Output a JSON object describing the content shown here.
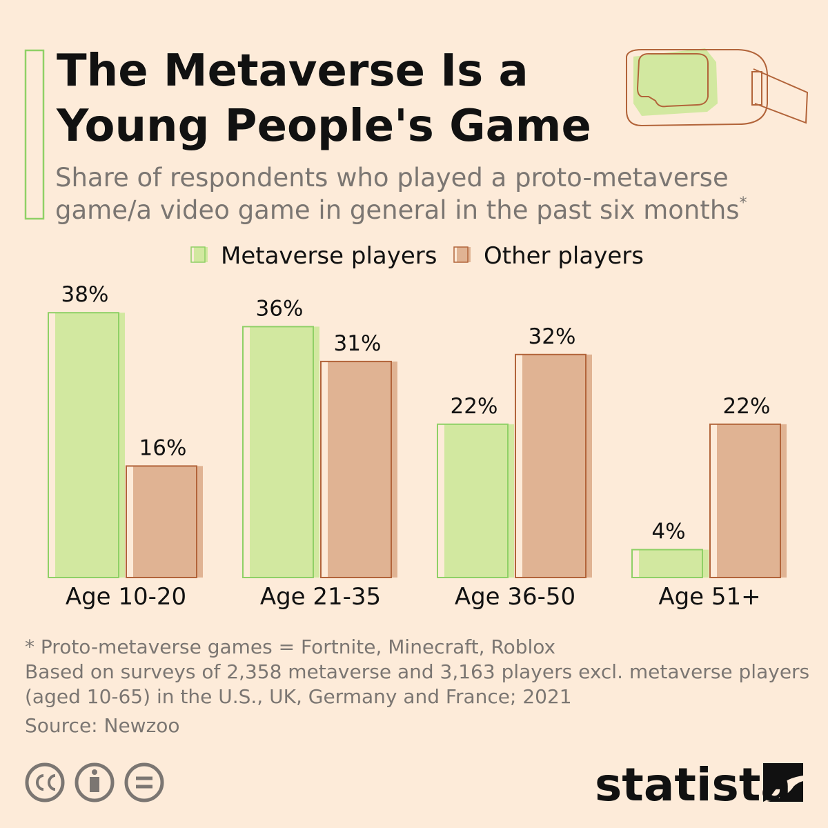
{
  "chart_data": {
    "type": "bar",
    "title": [
      "The Metaverse Is a",
      "Young People's Game"
    ],
    "subtitle": [
      "Share of respondents who played a proto-metaverse",
      "game/a video game in general in the past six months"
    ],
    "subtitle_marker": "*",
    "categories": [
      "Age 10-20",
      "Age 21-35",
      "Age 36-50",
      "Age 51+"
    ],
    "series": [
      {
        "name": "Metaverse players",
        "color": "#d2e8a0",
        "edge": "#8fd066",
        "values": [
          38,
          36,
          22,
          4
        ],
        "value_labels": [
          "38%",
          "36%",
          "22%",
          "4%"
        ]
      },
      {
        "name": "Other players",
        "color": "#e0b393",
        "edge": "#b2643a",
        "values": [
          16,
          31,
          32,
          22
        ],
        "value_labels": [
          "16%",
          "31%",
          "32%",
          "22%"
        ]
      }
    ],
    "legend": "top",
    "notes": [
      "* Proto-metaverse games = Fortnite, Minecraft, Roblox",
      "Based on surveys of 2,358 metaverse and 3,163 players excl. metaverse players",
      "(aged 10-65) in the U.S., UK, Germany and France; 2021"
    ],
    "source": "Source: Newzoo",
    "brand": "statista"
  }
}
